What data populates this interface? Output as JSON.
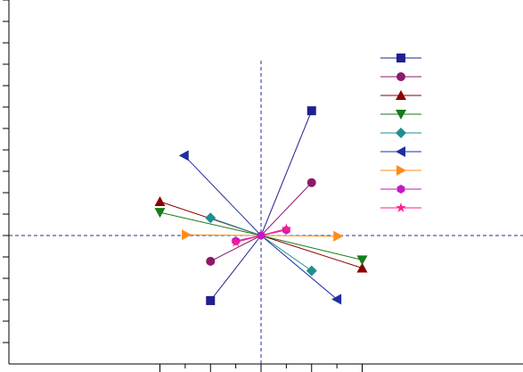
{
  "chart_data": {
    "type": "scatter",
    "title": "",
    "xlabel": "",
    "ylabel": "",
    "xlim": [
      -1.0,
      1.05
    ],
    "ylim": [
      -0.6,
      1.05
    ],
    "grid": false,
    "legend_placement": "top-right",
    "series": [
      {
        "marker": "square",
        "color": "#1f1f8f",
        "points": [
          [
            -0.5,
            -0.48
          ],
          [
            0.5,
            0.92
          ]
        ]
      },
      {
        "marker": "circle",
        "color": "#8b1a6b",
        "points": [
          [
            -0.5,
            -0.19
          ],
          [
            0.5,
            0.39
          ]
        ]
      },
      {
        "marker": "triangle-up",
        "color": "#8b0000",
        "points": [
          [
            -1.0,
            0.25
          ],
          [
            1.0,
            -0.24
          ]
        ]
      },
      {
        "marker": "triangle-down",
        "color": "#1a7a1a",
        "points": [
          [
            -1.0,
            0.17
          ],
          [
            1.0,
            -0.18
          ]
        ]
      },
      {
        "marker": "diamond",
        "color": "#1f8f8f",
        "points": [
          [
            -0.5,
            0.13
          ],
          [
            0.5,
            -0.26
          ]
        ]
      },
      {
        "marker": "triangle-left",
        "color": "#1f2f9f",
        "points": [
          [
            -0.76,
            0.59
          ],
          [
            0.75,
            -0.47
          ]
        ]
      },
      {
        "marker": "triangle-right",
        "color": "#ff8c1a",
        "points": [
          [
            -0.74,
            0.005
          ],
          [
            0.76,
            -0.005
          ]
        ]
      },
      {
        "marker": "hexagon",
        "color": "#c21ac2",
        "points": [
          [
            -0.25,
            -0.04
          ],
          [
            0.25,
            0.04
          ]
        ]
      },
      {
        "marker": "star",
        "color": "#ff1a8c",
        "points": [
          [
            -0.25,
            -0.05
          ],
          [
            0.25,
            0.05
          ]
        ]
      }
    ]
  }
}
